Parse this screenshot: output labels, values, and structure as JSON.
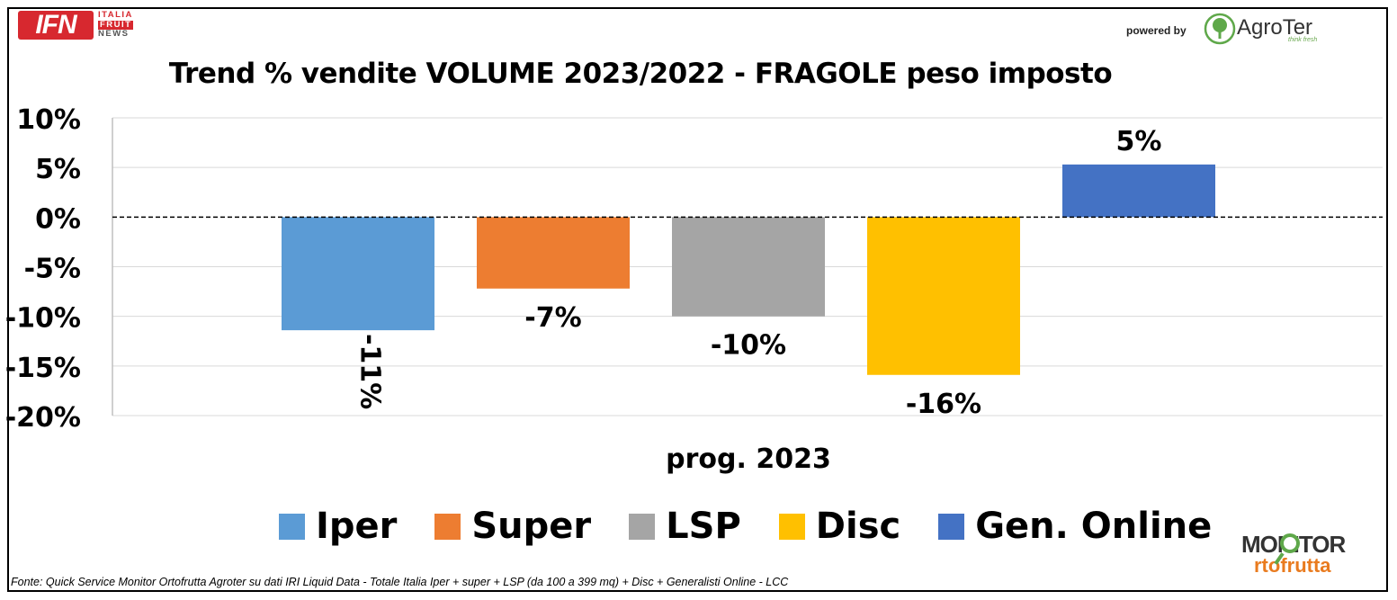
{
  "header": {
    "ifn_logo": {
      "main": "IFN",
      "line1": "ITALIA",
      "line2": "FRUIT",
      "line3": "NEWS"
    },
    "powered_by": "powered by",
    "agroter": {
      "name": "AgroTer",
      "tagline": "think fresh"
    }
  },
  "footer": {
    "source": "Fonte: Quick Service Monitor Ortofrutta Agroter su dati IRI Liquid Data - Totale Italia Iper + super + LSP (da 100 a 399 mq) + Disc + Generalisti Online - LCC",
    "monitor_logo": {
      "line1": "MONITOR",
      "line2": "rtofrutta"
    }
  },
  "chart_data": {
    "type": "bar",
    "title": "Trend % vendite VOLUME 2023/2022 - FRAGOLE peso imposto",
    "xlabel": "prog. 2023",
    "ylabel": "",
    "categories": [
      "prog. 2023"
    ],
    "ylim": [
      -20,
      10
    ],
    "yticks": [
      10,
      5,
      0,
      -5,
      -10,
      -15,
      -20
    ],
    "ytick_labels": [
      "10%",
      "5%",
      "0%",
      "-5%",
      "-10%",
      "-15%",
      "-20%"
    ],
    "grid": true,
    "zero_line": "dashed",
    "legend_position": "bottom",
    "series": [
      {
        "name": "Iper",
        "values": [
          -11.4
        ],
        "label": "-11%",
        "color": "#5b9bd5",
        "label_rotated": true
      },
      {
        "name": "Super",
        "values": [
          -7.2
        ],
        "label": "-7%",
        "color": "#ed7d31",
        "label_rotated": false
      },
      {
        "name": "LSP",
        "values": [
          -10.0
        ],
        "label": "-10%",
        "color": "#a5a5a5",
        "label_rotated": false
      },
      {
        "name": "Disc",
        "values": [
          -15.9
        ],
        "label": "-16%",
        "color": "#ffc000",
        "label_rotated": false
      },
      {
        "name": "Gen. Online",
        "values": [
          5.3
        ],
        "label": "5%",
        "color": "#4472c4",
        "label_rotated": false
      }
    ]
  }
}
